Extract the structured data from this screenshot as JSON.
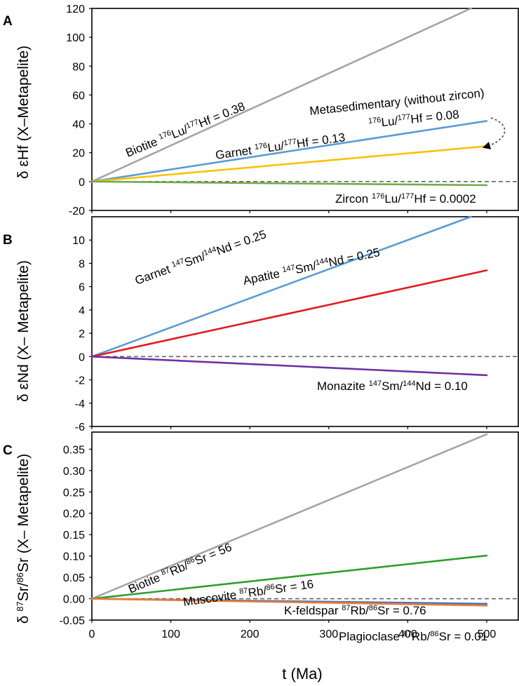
{
  "chart_data": [
    {
      "type": "line",
      "panel": "A",
      "ylabel": "δ εHf (X–Metapelite)",
      "xlim": [
        0,
        540
      ],
      "ylim": [
        -20,
        120
      ],
      "yticks": [
        120,
        100,
        80,
        60,
        40,
        20,
        0,
        -20
      ],
      "ytick_labels": [
        "120",
        "100",
        "80",
        "60",
        "40",
        "20",
        "0",
        "-20"
      ],
      "xticks": [
        0,
        100,
        200,
        300,
        400,
        500
      ],
      "reference_line": 0,
      "series": [
        {
          "name": "Biotite",
          "color": "#a5a5a5",
          "x": [
            0,
            480
          ],
          "y": [
            0,
            120
          ]
        },
        {
          "name": "Metasedimentary (without zircon)",
          "color": "#5b9bd5",
          "x": [
            0,
            500
          ],
          "y": [
            0,
            42
          ]
        },
        {
          "name": "Garnet",
          "color": "#ffc000",
          "x": [
            0,
            500
          ],
          "y": [
            0,
            24.5
          ]
        },
        {
          "name": "Zircon",
          "color": "#70ad47",
          "x": [
            0,
            500
          ],
          "y": [
            0,
            -2.5
          ]
        }
      ],
      "annotations": [
        {
          "series": "Biotite",
          "mineral": "Biotite ",
          "ratio_a": "176",
          "el_a": "Lu/",
          "ratio_b": "177",
          "el_b": "Hf",
          "value": " = 0.38"
        },
        {
          "series": "Garnet",
          "mineral": "Garnet ",
          "ratio_a": "176",
          "el_a": "Lu/",
          "ratio_b": "177",
          "el_b": "Hf",
          "value": " = 0.13"
        },
        {
          "series": "Metasedimentary",
          "line1": "Metasedimentary (without zircon)",
          "ratio_a": "176",
          "el_a": "Lu/",
          "ratio_b": "177",
          "el_b": "Hf",
          "value": " = 0.08"
        },
        {
          "series": "Zircon",
          "mineral": "Zircon ",
          "ratio_a": "176",
          "el_a": "Lu/",
          "ratio_b": "177",
          "el_b": "Hf",
          "value": " = 0.0002"
        }
      ]
    },
    {
      "type": "line",
      "panel": "B",
      "ylabel": "δ εNd (X– Metapelite)",
      "xlim": [
        0,
        540
      ],
      "ylim": [
        -6,
        12
      ],
      "yticks": [
        10,
        8,
        6,
        4,
        2,
        0,
        -2,
        -4,
        -6
      ],
      "ytick_labels": [
        "10",
        "8",
        "6",
        "4",
        "2",
        "0",
        "-2",
        "-4",
        "-6"
      ],
      "xticks": [
        0,
        100,
        200,
        300,
        400,
        500
      ],
      "reference_line": 0,
      "series": [
        {
          "name": "Garnet",
          "color": "#5b9bd5",
          "x": [
            0,
            480
          ],
          "y": [
            0,
            12
          ]
        },
        {
          "name": "Apatite",
          "color": "#e31a1c",
          "x": [
            0,
            500
          ],
          "y": [
            0,
            7.4
          ]
        },
        {
          "name": "Monazite",
          "color": "#7030a0",
          "x": [
            0,
            500
          ],
          "y": [
            0,
            -1.6
          ]
        }
      ],
      "annotations": [
        {
          "series": "Garnet",
          "mineral": "Garnet ",
          "ratio_a": "147",
          "el_a": "Sm/",
          "ratio_b": "144",
          "el_b": "Nd",
          "value": " = 0.25"
        },
        {
          "series": "Apatite",
          "mineral": "Apatite ",
          "ratio_a": "147",
          "el_a": "Sm/",
          "ratio_b": "144",
          "el_b": "Nd",
          "value": " = 0.25"
        },
        {
          "series": "Monazite",
          "mineral": "Monazite ",
          "ratio_a": "147",
          "el_a": "Sm/",
          "ratio_b": "144",
          "el_b": "Nd",
          "value": " = 0.10"
        }
      ]
    },
    {
      "type": "line",
      "panel": "C",
      "ylabel_pre": "δ ",
      "ylabel_sup1": "87",
      "ylabel_mid": "Sr/",
      "ylabel_sup2": "86",
      "ylabel_post": "Sr (X– Metapelite)",
      "xlabel": "t (Ma)",
      "xlim": [
        0,
        540
      ],
      "ylim": [
        -0.05,
        0.39
      ],
      "yticks": [
        0.35,
        0.3,
        0.25,
        0.2,
        0.15,
        0.1,
        0.05,
        0.0,
        -0.05
      ],
      "ytick_labels": [
        "0.35",
        "0.30",
        "0.25",
        "0.20",
        "0.15",
        "0.10",
        "0.05",
        "0.00",
        "-0.05"
      ],
      "xticks": [
        0,
        100,
        200,
        300,
        400,
        500
      ],
      "xtick_labels": [
        "0",
        "100",
        "200",
        "300",
        "400",
        "500"
      ],
      "reference_line": 0,
      "series": [
        {
          "name": "Biotite",
          "color": "#a5a5a5",
          "x": [
            0,
            500
          ],
          "y": [
            0,
            0.385
          ]
        },
        {
          "name": "Muscovite",
          "color": "#2ca02c",
          "x": [
            0,
            500
          ],
          "y": [
            0,
            0.101
          ]
        },
        {
          "name": "K-feldspar",
          "color": "#4472c4",
          "x": [
            0,
            500
          ],
          "y": [
            0,
            -0.012
          ]
        },
        {
          "name": "Plagioclase",
          "color": "#ed7d31",
          "x": [
            0,
            500
          ],
          "y": [
            0,
            -0.016
          ]
        }
      ],
      "annotations": [
        {
          "series": "Biotite",
          "mineral": "Biotite ",
          "ratio_a": "87",
          "el_a": "Rb/",
          "ratio_b": "86",
          "el_b": "Sr",
          "value": " = 56"
        },
        {
          "series": "Muscovite",
          "mineral": "Muscovite ",
          "ratio_a": "87",
          "el_a": "Rb/",
          "ratio_b": "86",
          "el_b": "Sr",
          "value": " = 16"
        },
        {
          "series": "K-feldspar",
          "mineral": "K-feldspar ",
          "ratio_a": "87",
          "el_a": "Rb/",
          "ratio_b": "86",
          "el_b": "Sr",
          "value": " = 0.76"
        },
        {
          "series": "Plagioclase",
          "mineral": "Plagioclase ",
          "ratio_a": "87",
          "el_a": "Rb/",
          "ratio_b": "86",
          "el_b": "Sr",
          "value": " = 0.01"
        }
      ]
    }
  ]
}
